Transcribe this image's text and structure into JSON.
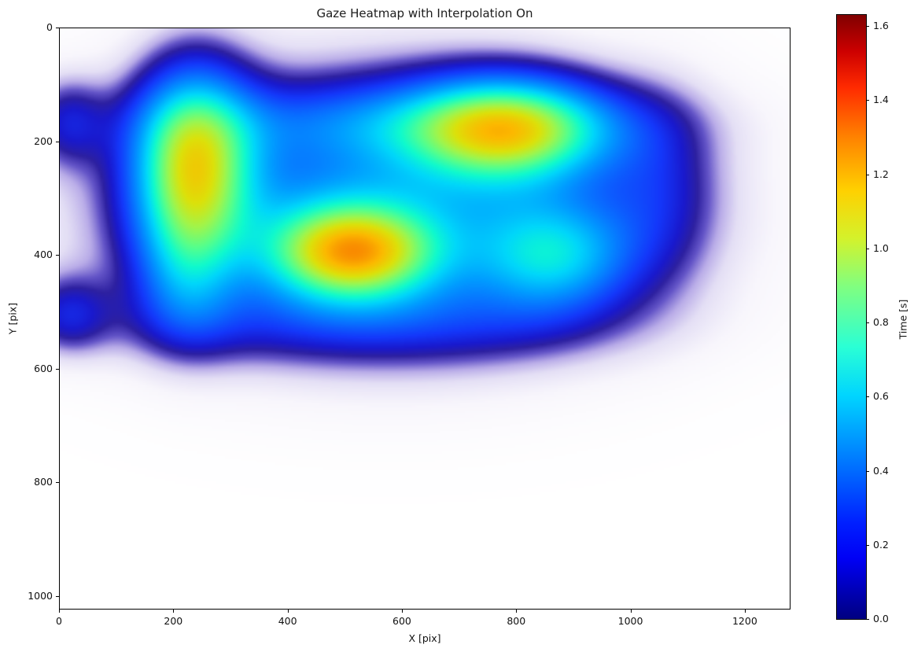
{
  "figure": {
    "background": "#ffffff",
    "title": "Gaze Heatmap with Interpolation On"
  },
  "chart_data": {
    "type": "heatmap",
    "title": "Gaze Heatmap with Interpolation On",
    "xlabel": "X [pix]",
    "ylabel": "Y [pix]",
    "xlim": [
      0,
      1280
    ],
    "ylim": [
      1024,
      0
    ],
    "y_axis_inverted": true,
    "x_ticks": [
      0,
      200,
      400,
      600,
      800,
      1000,
      1200
    ],
    "y_ticks": [
      0,
      200,
      400,
      600,
      800,
      1000
    ],
    "grid": false,
    "interpolation": "gaussian",
    "colorbar": {
      "label": "Time [s]",
      "ticks": [
        "0.0",
        "0.2",
        "0.4",
        "0.6",
        "0.8",
        "1.0",
        "1.2",
        "1.4",
        "1.6"
      ],
      "vmin": 0.0,
      "vmax": 1.63,
      "colormap": "jet",
      "position": "right"
    },
    "gaze_clusters": [
      {
        "x": 15,
        "y": 165,
        "sigma_x": 48,
        "sigma_y": 55,
        "peak_time_s": 0.2
      },
      {
        "x": 15,
        "y": 505,
        "sigma_x": 52,
        "sigma_y": 48,
        "peak_time_s": 0.21
      },
      {
        "x": 235,
        "y": 240,
        "sigma_x": 72,
        "sigma_y": 112,
        "peak_time_s": 0.9
      },
      {
        "x": 222,
        "y": 435,
        "sigma_x": 60,
        "sigma_y": 85,
        "peak_time_s": 0.28
      },
      {
        "x": 512,
        "y": 396,
        "sigma_x": 100,
        "sigma_y": 58,
        "peak_time_s": 0.91
      },
      {
        "x": 785,
        "y": 180,
        "sigma_x": 118,
        "sigma_y": 62,
        "peak_time_s": 0.82
      },
      {
        "x": 868,
        "y": 402,
        "sigma_x": 92,
        "sigma_y": 66,
        "peak_time_s": 0.44
      },
      {
        "x": 1052,
        "y": 285,
        "sigma_x": 72,
        "sigma_y": 115,
        "peak_time_s": 0.16
      },
      {
        "x": 580,
        "y": 320,
        "sigma_x": 310,
        "sigma_y": 160,
        "peak_time_s": 0.49
      },
      {
        "x": 330,
        "y": 522,
        "sigma_x": 230,
        "sigma_y": 52,
        "peak_time_s": 0.11
      },
      {
        "x": 730,
        "y": 522,
        "sigma_x": 215,
        "sigma_y": 52,
        "peak_time_s": 0.11
      },
      {
        "x": 600,
        "y": 165,
        "sigma_x": 280,
        "sigma_y": 48,
        "peak_time_s": 0.21
      }
    ],
    "hotspot_color": "#f08000",
    "background_color": "#ffffff"
  }
}
